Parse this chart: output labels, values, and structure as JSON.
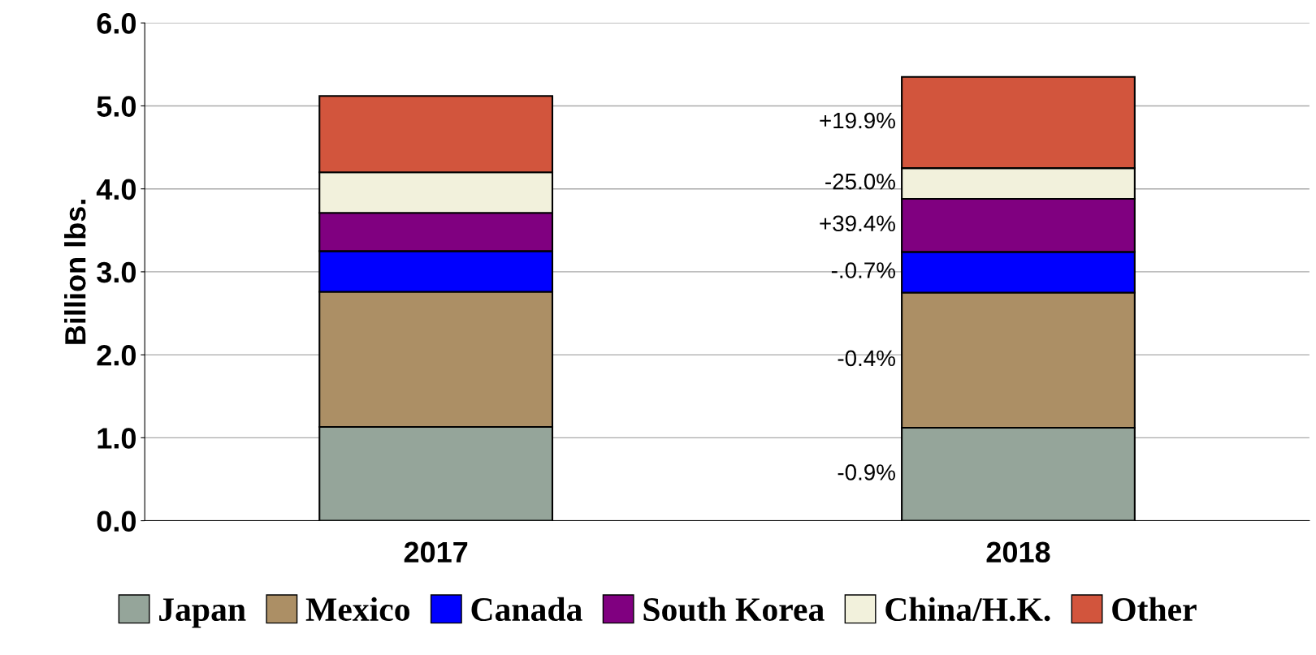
{
  "chart_data": {
    "type": "bar",
    "stacked": true,
    "ylabel": "Billion lbs.",
    "categories": [
      "2017",
      "2018"
    ],
    "series": [
      {
        "name": "Japan",
        "color": "#95a59a",
        "values": [
          1.13,
          1.12
        ]
      },
      {
        "name": "Mexico",
        "color": "#ac8f65",
        "values": [
          1.63,
          1.63
        ]
      },
      {
        "name": "Canada",
        "color": "#0000ff",
        "values": [
          0.49,
          0.49
        ]
      },
      {
        "name": "South Korea",
        "color": "#800080",
        "values": [
          0.46,
          0.64
        ]
      },
      {
        "name": "China/H.K.",
        "color": "#f2f1dc",
        "values": [
          0.49,
          0.37
        ]
      },
      {
        "name": "Other",
        "color": "#d2553d",
        "values": [
          0.92,
          1.1
        ]
      }
    ],
    "annotations": [
      "+19.9%",
      "-25.0%",
      "+39.4%",
      "-.0.7%",
      "-0.4%",
      "-0.9%"
    ],
    "ylim": [
      0,
      6
    ],
    "yticks": [
      {
        "value": 0,
        "label": "0.0"
      },
      {
        "value": 1,
        "label": "1.0"
      },
      {
        "value": 2,
        "label": "2.0"
      },
      {
        "value": 3,
        "label": "3.0"
      },
      {
        "value": 4,
        "label": "4.0"
      },
      {
        "value": 5,
        "label": "5.0"
      },
      {
        "value": 6,
        "label": "6.0"
      }
    ],
    "grid": "y",
    "legend": "bottom"
  }
}
